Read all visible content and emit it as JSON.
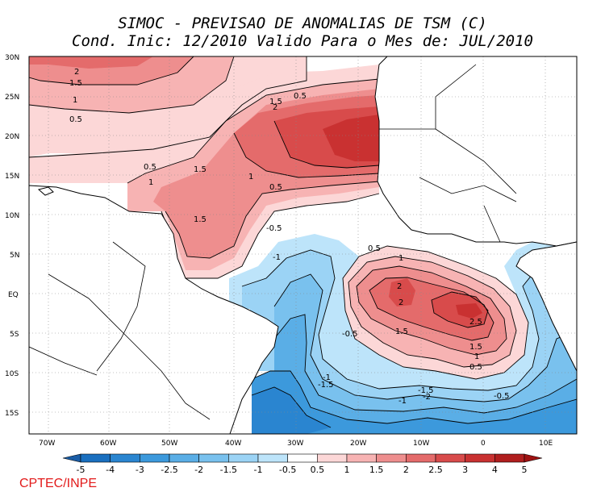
{
  "title": {
    "line1": "SIMOC - PREVISAO DE ANOMALIAS DE TSM (C)",
    "line2": "Cond. Inic: 12/2010   Valido Para o Mes de: JUL/2010"
  },
  "map": {
    "region": "Tropical Atlantic",
    "lon_range": [
      -72,
      13
    ],
    "lat_range": [
      -18,
      30
    ],
    "lat_ticks": [
      "30N",
      "25N",
      "20N",
      "15N",
      "10N",
      "5N",
      "EQ",
      "5S",
      "10S",
      "15S"
    ],
    "lon_ticks": [
      "70W",
      "60W",
      "50W",
      "40W",
      "30W",
      "20W",
      "10W",
      "0",
      "10E"
    ],
    "contour_labels": [
      "2",
      "1.5",
      "1",
      "0.5",
      "1.5",
      "2",
      "0.5",
      "0.5",
      "1",
      "1.5",
      "1",
      "0.5",
      "1.5",
      "-0.5",
      "-1",
      "0.5",
      "1",
      "2",
      "2",
      "2.5",
      "1.5",
      "1.5",
      "1",
      "0.5",
      "-0.5",
      "-1",
      "-1.5",
      "-1",
      "-1.5",
      "-2",
      "-0.5"
    ]
  },
  "colorbar": {
    "labels": [
      "-5",
      "-4",
      "-3",
      "-2.5",
      "-2",
      "-1.5",
      "-1",
      "-0.5",
      "0.5",
      "1",
      "1.5",
      "2",
      "2.5",
      "3",
      "4",
      "5"
    ],
    "colors": [
      "#1a6fbf",
      "#2a85d0",
      "#3c99dc",
      "#5aaee6",
      "#79c1ee",
      "#9bd3f5",
      "#bde4fa",
      "#ffffff",
      "#fcd7d7",
      "#f7b3b3",
      "#ee8e8e",
      "#e46b6b",
      "#d84b4b",
      "#c93131",
      "#b01e1e"
    ],
    "end_low": "#1a5da6",
    "end_high": "#9e1212"
  },
  "credit": "CPTEC/INPE"
}
